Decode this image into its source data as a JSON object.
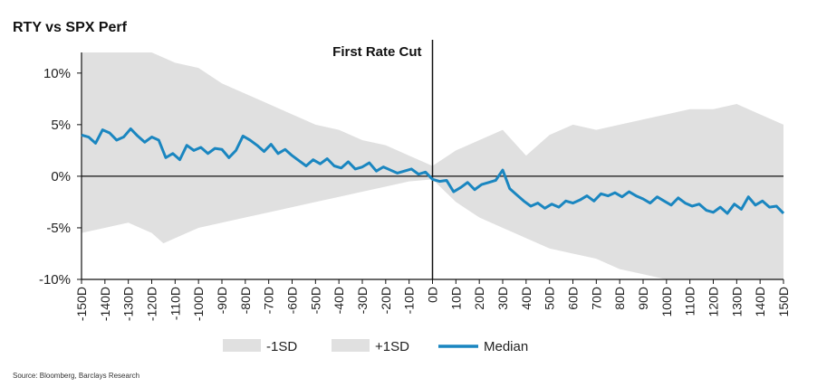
{
  "title": "RTY vs SPX Perf",
  "source": "Source: Bloomberg, Barclays Research",
  "chart_data": {
    "type": "area",
    "xlabel": "",
    "ylabel": "",
    "x_ticks": [
      "-150D",
      "-140D",
      "-130D",
      "-120D",
      "-110D",
      "-100D",
      "-90D",
      "-80D",
      "-70D",
      "-60D",
      "-50D",
      "-40D",
      "-30D",
      "-20D",
      "-10D",
      "0D",
      "10D",
      "20D",
      "30D",
      "40D",
      "50D",
      "60D",
      "70D",
      "80D",
      "90D",
      "100D",
      "110D",
      "120D",
      "130D",
      "140D",
      "150D"
    ],
    "y_ticks": [
      "10%",
      "5%",
      "0%",
      "-5%",
      "-10%"
    ],
    "ylim": [
      -10,
      12
    ],
    "xlim": [
      -150,
      150
    ],
    "annotation": {
      "text": "First Rate Cut",
      "x": 0
    },
    "grid": false,
    "legend_position": "bottom",
    "series": [
      {
        "name": "-1SD",
        "color": "#e0e0e0",
        "x": [
          -150,
          -140,
          -130,
          -120,
          -115,
          -110,
          -100,
          -90,
          -80,
          -70,
          -60,
          -50,
          -40,
          -30,
          -20,
          -10,
          0,
          10,
          20,
          30,
          40,
          50,
          60,
          70,
          80,
          90,
          100,
          110,
          120,
          130,
          140,
          150
        ],
        "values": [
          -5.5,
          -5.0,
          -4.5,
          -5.5,
          -6.5,
          -6.0,
          -5.0,
          -4.5,
          -4.0,
          -3.5,
          -3.0,
          -2.5,
          -2.0,
          -1.5,
          -1.0,
          -0.5,
          -0.3,
          -2.5,
          -4.0,
          -5.0,
          -6.0,
          -7.0,
          -7.5,
          -8.0,
          -9.0,
          -9.5,
          -10,
          -10,
          -10,
          -10,
          -10,
          -10
        ]
      },
      {
        "name": "+1SD",
        "color": "#e0e0e0",
        "x": [
          -150,
          -140,
          -130,
          -120,
          -110,
          -100,
          -90,
          -80,
          -70,
          -60,
          -50,
          -40,
          -30,
          -20,
          -10,
          0,
          10,
          20,
          30,
          40,
          50,
          60,
          70,
          80,
          90,
          100,
          110,
          120,
          130,
          140,
          150
        ],
        "values": [
          12,
          12,
          12,
          12,
          11,
          10.5,
          9,
          8,
          7,
          6,
          5,
          4.5,
          3.5,
          3,
          2,
          1,
          2.5,
          3.5,
          4.5,
          2,
          4,
          5,
          4.5,
          5,
          5.5,
          6,
          6.5,
          6.5,
          7,
          6,
          5
        ]
      },
      {
        "name": "Median",
        "color": "#1a86c0",
        "x": [
          -150,
          -147,
          -144,
          -141,
          -138,
          -135,
          -132,
          -129,
          -126,
          -123,
          -120,
          -117,
          -114,
          -111,
          -108,
          -105,
          -102,
          -99,
          -96,
          -93,
          -90,
          -87,
          -84,
          -81,
          -78,
          -75,
          -72,
          -69,
          -66,
          -63,
          -60,
          -57,
          -54,
          -51,
          -48,
          -45,
          -42,
          -39,
          -36,
          -33,
          -30,
          -27,
          -24,
          -21,
          -18,
          -15,
          -12,
          -9,
          -6,
          -3,
          0,
          3,
          6,
          9,
          12,
          15,
          18,
          21,
          24,
          27,
          30,
          33,
          36,
          39,
          42,
          45,
          48,
          51,
          54,
          57,
          60,
          63,
          66,
          69,
          72,
          75,
          78,
          81,
          84,
          87,
          90,
          93,
          96,
          99,
          102,
          105,
          108,
          111,
          114,
          117,
          120,
          123,
          126,
          129,
          132,
          135,
          138,
          141,
          144,
          147,
          150
        ],
        "values": [
          4.0,
          3.8,
          3.2,
          4.5,
          4.2,
          3.5,
          3.8,
          4.6,
          3.9,
          3.3,
          3.8,
          3.5,
          1.8,
          2.2,
          1.6,
          3.0,
          2.5,
          2.8,
          2.2,
          2.7,
          2.6,
          1.8,
          2.5,
          3.9,
          3.5,
          3.0,
          2.4,
          3.1,
          2.2,
          2.6,
          2.0,
          1.5,
          1.0,
          1.6,
          1.2,
          1.7,
          1.0,
          0.8,
          1.4,
          0.7,
          0.9,
          1.3,
          0.5,
          0.9,
          0.6,
          0.3,
          0.5,
          0.7,
          0.2,
          0.4,
          -0.3,
          -0.5,
          -0.4,
          -1.5,
          -1.1,
          -0.6,
          -1.3,
          -0.8,
          -0.6,
          -0.4,
          0.6,
          -1.2,
          -1.8,
          -2.4,
          -2.9,
          -2.6,
          -3.1,
          -2.7,
          -3.0,
          -2.4,
          -2.6,
          -2.3,
          -1.9,
          -2.4,
          -1.7,
          -1.9,
          -1.6,
          -2.0,
          -1.5,
          -1.9,
          -2.2,
          -2.6,
          -2.0,
          -2.4,
          -2.8,
          -2.1,
          -2.6,
          -2.9,
          -2.7,
          -3.3,
          -3.5,
          -3.0,
          -3.6,
          -2.7,
          -3.2,
          -2.0,
          -2.8,
          -2.4,
          -3.0,
          -2.9,
          -3.6
        ]
      }
    ]
  }
}
